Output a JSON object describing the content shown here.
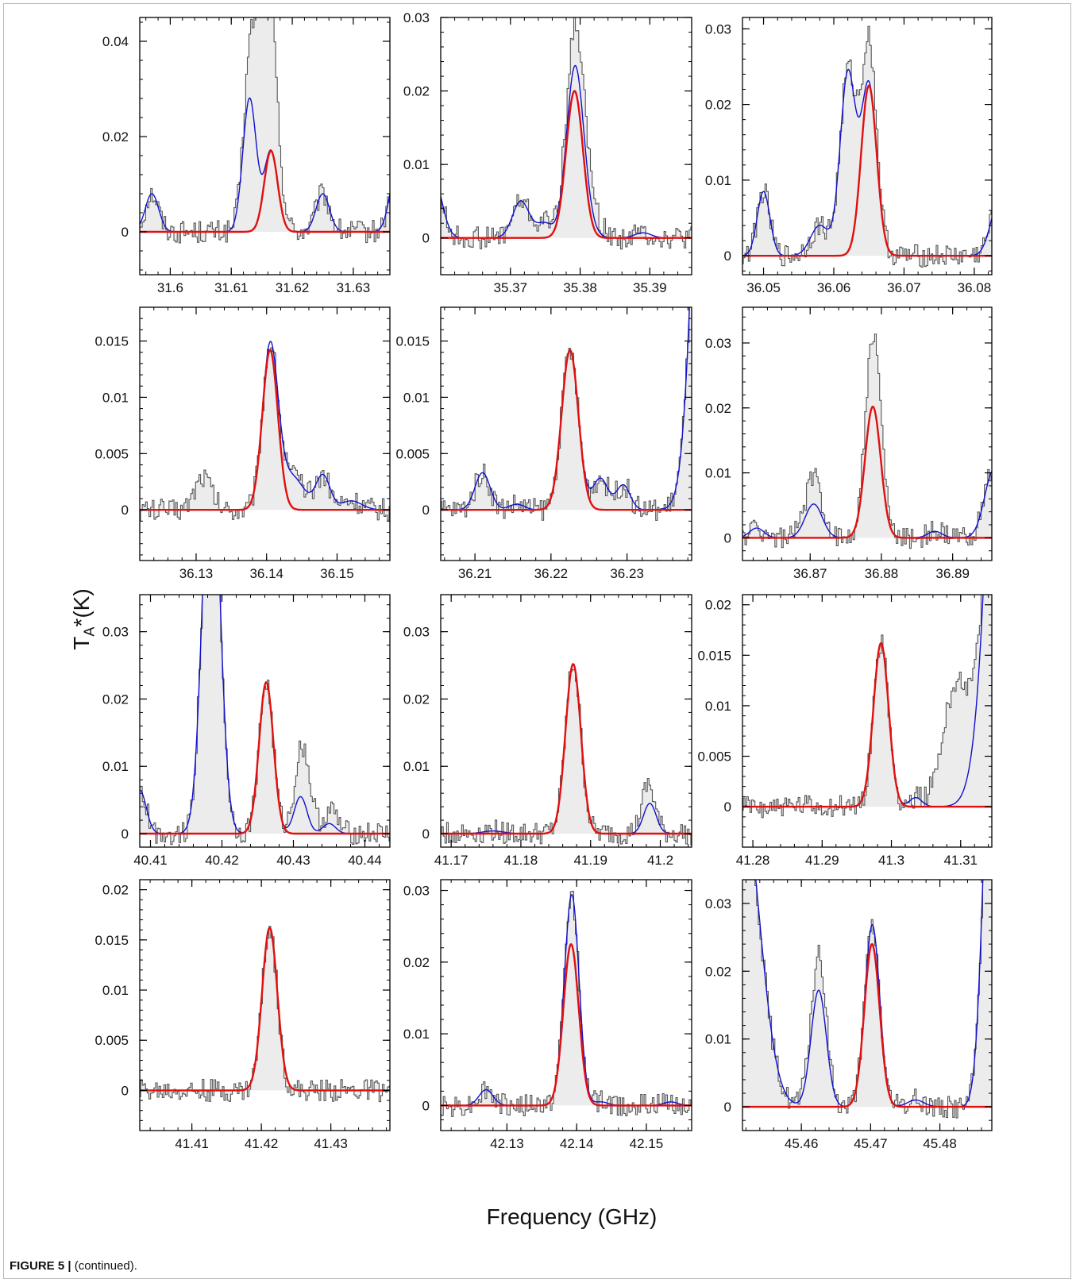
{
  "figure": {
    "y_label_main": "T",
    "y_label_sub": "A",
    "y_label_tail": "*(K)",
    "x_label": "Frequency (GHz)",
    "caption_bold": "FIGURE 5 |",
    "caption_text": " (continued)."
  },
  "colors": {
    "observed_fill": "#ececec",
    "observed_line": "#555555",
    "fit_total": "#1010d0",
    "fit_species": "#e01010"
  },
  "chart_data": [
    {
      "type": "line",
      "xlim": [
        31.595,
        31.636
      ],
      "ylim": [
        -0.009,
        0.045
      ],
      "xticks": [
        "31.6",
        "31.61",
        "31.62",
        "31.63"
      ],
      "yticks": [
        "0",
        "0.02",
        "0.04"
      ],
      "peaks": [
        {
          "center": 31.597,
          "height": 0.008,
          "sigma": 0.0011,
          "red": false
        },
        {
          "center": 31.613,
          "height": 0.028,
          "sigma": 0.0011,
          "red": false
        },
        {
          "center": 31.6165,
          "height": 0.017,
          "sigma": 0.0011,
          "red": true
        },
        {
          "center": 31.625,
          "height": 0.008,
          "sigma": 0.0011,
          "red": false
        },
        {
          "center": 31.637,
          "height": 0.012,
          "sigma": 0.0011,
          "red": false
        }
      ],
      "obs_extra": [
        {
          "center": 31.6155,
          "height": 0.04,
          "sigma": 0.0016
        }
      ]
    },
    {
      "type": "line",
      "xlim": [
        35.36,
        35.396
      ],
      "ylim": [
        -0.005,
        0.03
      ],
      "xticks": [
        "35.37",
        "35.38",
        "35.39"
      ],
      "yticks": [
        "0",
        "0.01",
        "0.02",
        "0.03"
      ],
      "peaks": [
        {
          "center": 35.359,
          "height": 0.008,
          "sigma": 0.0012,
          "red": false
        },
        {
          "center": 35.3715,
          "height": 0.005,
          "sigma": 0.0012,
          "red": false
        },
        {
          "center": 35.3749,
          "height": 0.002,
          "sigma": 0.0012,
          "red": false
        },
        {
          "center": 35.38,
          "height": 0.004,
          "sigma": 0.0014,
          "red": false
        },
        {
          "center": 35.3792,
          "height": 0.02,
          "sigma": 0.0012,
          "red": true
        },
        {
          "center": 35.389,
          "height": 0.0007,
          "sigma": 0.0012,
          "red": false
        }
      ],
      "obs_extra": [
        {
          "center": 35.38,
          "height": 0.006,
          "sigma": 0.0018
        }
      ]
    },
    {
      "type": "line",
      "xlim": [
        36.047,
        36.0825
      ],
      "ylim": [
        -0.0025,
        0.0315
      ],
      "xticks": [
        "36.05",
        "36.06",
        "36.07",
        "36.08"
      ],
      "yticks": [
        "0",
        "0.01",
        "0.02",
        "0.03"
      ],
      "peaks": [
        {
          "center": 36.05,
          "height": 0.0085,
          "sigma": 0.0009,
          "red": false
        },
        {
          "center": 36.058,
          "height": 0.004,
          "sigma": 0.0013,
          "red": false
        },
        {
          "center": 36.062,
          "height": 0.024,
          "sigma": 0.0011,
          "red": false
        },
        {
          "center": 36.065,
          "height": 0.0225,
          "sigma": 0.0011,
          "red": true
        },
        {
          "center": 36.0835,
          "height": 0.007,
          "sigma": 0.0012,
          "red": false
        }
      ],
      "obs_extra": [
        {
          "center": 36.065,
          "height": 0.006,
          "sigma": 0.0012
        }
      ]
    },
    {
      "type": "line",
      "xlim": [
        36.122,
        36.1575
      ],
      "ylim": [
        -0.0045,
        0.018
      ],
      "xticks": [
        "36.13",
        "36.14",
        "36.15"
      ],
      "yticks": [
        "0",
        "0.005",
        "0.01",
        "0.015"
      ],
      "peaks": [
        {
          "center": 36.1405,
          "height": 0.0142,
          "sigma": 0.0011,
          "red": true
        },
        {
          "center": 36.1435,
          "height": 0.003,
          "sigma": 0.0018,
          "red": false
        },
        {
          "center": 36.148,
          "height": 0.003,
          "sigma": 0.001,
          "red": false
        },
        {
          "center": 36.152,
          "height": 0.0008,
          "sigma": 0.0015,
          "red": false
        }
      ],
      "obs_extra": [
        {
          "center": 36.131,
          "height": 0.003,
          "sigma": 0.0012
        }
      ]
    },
    {
      "type": "line",
      "xlim": [
        36.2055,
        36.2385
      ],
      "ylim": [
        -0.0045,
        0.018
      ],
      "xticks": [
        "36.21",
        "36.22",
        "36.23"
      ],
      "yticks": [
        "0",
        "0.005",
        "0.01",
        "0.015"
      ],
      "peaks": [
        {
          "center": 36.211,
          "height": 0.0033,
          "sigma": 0.001,
          "red": false
        },
        {
          "center": 36.2155,
          "height": 0.0005,
          "sigma": 0.001,
          "red": false
        },
        {
          "center": 36.2225,
          "height": 0.0142,
          "sigma": 0.0011,
          "red": true
        },
        {
          "center": 36.2265,
          "height": 0.0028,
          "sigma": 0.001,
          "red": false
        },
        {
          "center": 36.2295,
          "height": 0.0022,
          "sigma": 0.0009,
          "red": false
        },
        {
          "center": 36.2405,
          "height": 0.05,
          "sigma": 0.0016,
          "red": false
        }
      ],
      "obs_extra": []
    },
    {
      "type": "line",
      "xlim": [
        36.8605,
        36.8955
      ],
      "ylim": [
        -0.0035,
        0.0355
      ],
      "xticks": [
        "36.87",
        "36.88",
        "36.89"
      ],
      "yticks": [
        "0",
        "0.01",
        "0.02",
        "0.03"
      ],
      "peaks": [
        {
          "center": 36.8625,
          "height": 0.0015,
          "sigma": 0.001,
          "red": false
        },
        {
          "center": 36.8705,
          "height": 0.0052,
          "sigma": 0.0012,
          "red": false
        },
        {
          "center": 36.8788,
          "height": 0.0202,
          "sigma": 0.0011,
          "red": true
        },
        {
          "center": 36.8875,
          "height": 0.001,
          "sigma": 0.001,
          "red": false
        },
        {
          "center": 36.8958,
          "height": 0.0105,
          "sigma": 0.0013,
          "red": false
        }
      ],
      "obs_extra": [
        {
          "center": 36.879,
          "height": 0.011,
          "sigma": 0.0011
        },
        {
          "center": 36.8705,
          "height": 0.004,
          "sigma": 0.0012
        }
      ]
    },
    {
      "type": "line",
      "xlim": [
        40.4085,
        40.4435
      ],
      "ylim": [
        -0.002,
        0.0355
      ],
      "xticks": [
        "40.41",
        "40.42",
        "40.43",
        "40.44"
      ],
      "yticks": [
        "0",
        "0.01",
        "0.02",
        "0.03"
      ],
      "peaks": [
        {
          "center": 40.4085,
          "height": 0.0065,
          "sigma": 0.0009,
          "red": false
        },
        {
          "center": 40.4185,
          "height": 0.06,
          "sigma": 0.0012,
          "red": false
        },
        {
          "center": 40.4262,
          "height": 0.0225,
          "sigma": 0.001,
          "red": true
        },
        {
          "center": 40.431,
          "height": 0.0055,
          "sigma": 0.0009,
          "red": false
        },
        {
          "center": 40.435,
          "height": 0.0015,
          "sigma": 0.0009,
          "red": false
        }
      ],
      "obs_extra": [
        {
          "center": 40.4315,
          "height": 0.008,
          "sigma": 0.0011
        },
        {
          "center": 40.4355,
          "height": 0.002,
          "sigma": 0.0009
        }
      ]
    },
    {
      "type": "line",
      "xlim": [
        41.1685,
        41.2045
      ],
      "ylim": [
        -0.002,
        0.0355
      ],
      "xticks": [
        "41.17",
        "41.18",
        "41.19",
        "41.2"
      ],
      "yticks": [
        "0",
        "0.01",
        "0.02",
        "0.03"
      ],
      "peaks": [
        {
          "center": 41.176,
          "height": 0.0004,
          "sigma": 0.0015,
          "red": false
        },
        {
          "center": 41.1875,
          "height": 0.0252,
          "sigma": 0.0011,
          "red": true
        },
        {
          "center": 41.1985,
          "height": 0.0045,
          "sigma": 0.0009,
          "red": false
        }
      ],
      "obs_extra": [
        {
          "center": 41.198,
          "height": 0.003,
          "sigma": 0.0009
        }
      ]
    },
    {
      "type": "line",
      "xlim": [
        41.2785,
        41.3145
      ],
      "ylim": [
        -0.004,
        0.021
      ],
      "xticks": [
        "41.28",
        "41.29",
        "41.3",
        "41.31"
      ],
      "yticks": [
        "0",
        "0.005",
        "0.01",
        "0.015",
        "0.02"
      ],
      "peaks": [
        {
          "center": 41.2985,
          "height": 0.0162,
          "sigma": 0.0011,
          "red": true
        },
        {
          "center": 41.3035,
          "height": 0.0009,
          "sigma": 0.0009,
          "red": false
        },
        {
          "center": 41.3175,
          "height": 0.09,
          "sigma": 0.0025,
          "red": false
        }
      ],
      "obs_extra": [
        {
          "center": 41.3095,
          "height": 0.012,
          "sigma": 0.002
        }
      ]
    },
    {
      "type": "line",
      "xlim": [
        41.4025,
        41.4385
      ],
      "ylim": [
        -0.004,
        0.021
      ],
      "xticks": [
        "41.41",
        "41.42",
        "41.43"
      ],
      "yticks": [
        "0",
        "0.005",
        "0.01",
        "0.015",
        "0.02"
      ],
      "peaks": [
        {
          "center": 41.4212,
          "height": 0.0162,
          "sigma": 0.0011,
          "red": true
        }
      ],
      "obs_extra": []
    },
    {
      "type": "line",
      "xlim": [
        42.1205,
        42.1565
      ],
      "ylim": [
        -0.0035,
        0.0315
      ],
      "xticks": [
        "42.13",
        "42.14",
        "42.15"
      ],
      "yticks": [
        "0",
        "0.01",
        "0.02",
        "0.03"
      ],
      "peaks": [
        {
          "center": 42.127,
          "height": 0.0022,
          "sigma": 0.001,
          "red": false
        },
        {
          "center": 42.1392,
          "height": 0.0225,
          "sigma": 0.0011,
          "red": true
        },
        {
          "center": 42.1395,
          "height": 0.0072,
          "sigma": 0.0009,
          "red": false
        },
        {
          "center": 42.1435,
          "height": 0.0005,
          "sigma": 0.001,
          "red": false
        },
        {
          "center": 42.1535,
          "height": 0.0005,
          "sigma": 0.001,
          "red": false
        }
      ],
      "obs_extra": []
    },
    {
      "type": "line",
      "xlim": [
        45.4515,
        45.4875
      ],
      "ylim": [
        -0.0035,
        0.0335
      ],
      "xticks": [
        "45.46",
        "45.47",
        "45.48"
      ],
      "yticks": [
        "0",
        "0.01",
        "0.02",
        "0.03"
      ],
      "peaks": [
        {
          "center": 45.4515,
          "height": 0.045,
          "sigma": 0.0025,
          "red": false
        },
        {
          "center": 45.4625,
          "height": 0.0172,
          "sigma": 0.0011,
          "red": false
        },
        {
          "center": 45.4702,
          "height": 0.024,
          "sigma": 0.0011,
          "red": true
        },
        {
          "center": 45.4705,
          "height": 0.003,
          "sigma": 0.0009,
          "red": false
        },
        {
          "center": 45.4765,
          "height": 0.001,
          "sigma": 0.0012,
          "red": false
        },
        {
          "center": 45.4875,
          "height": 0.06,
          "sigma": 0.0012,
          "red": false
        }
      ],
      "obs_extra": [
        {
          "center": 45.4625,
          "height": 0.005,
          "sigma": 0.0012
        }
      ]
    }
  ]
}
